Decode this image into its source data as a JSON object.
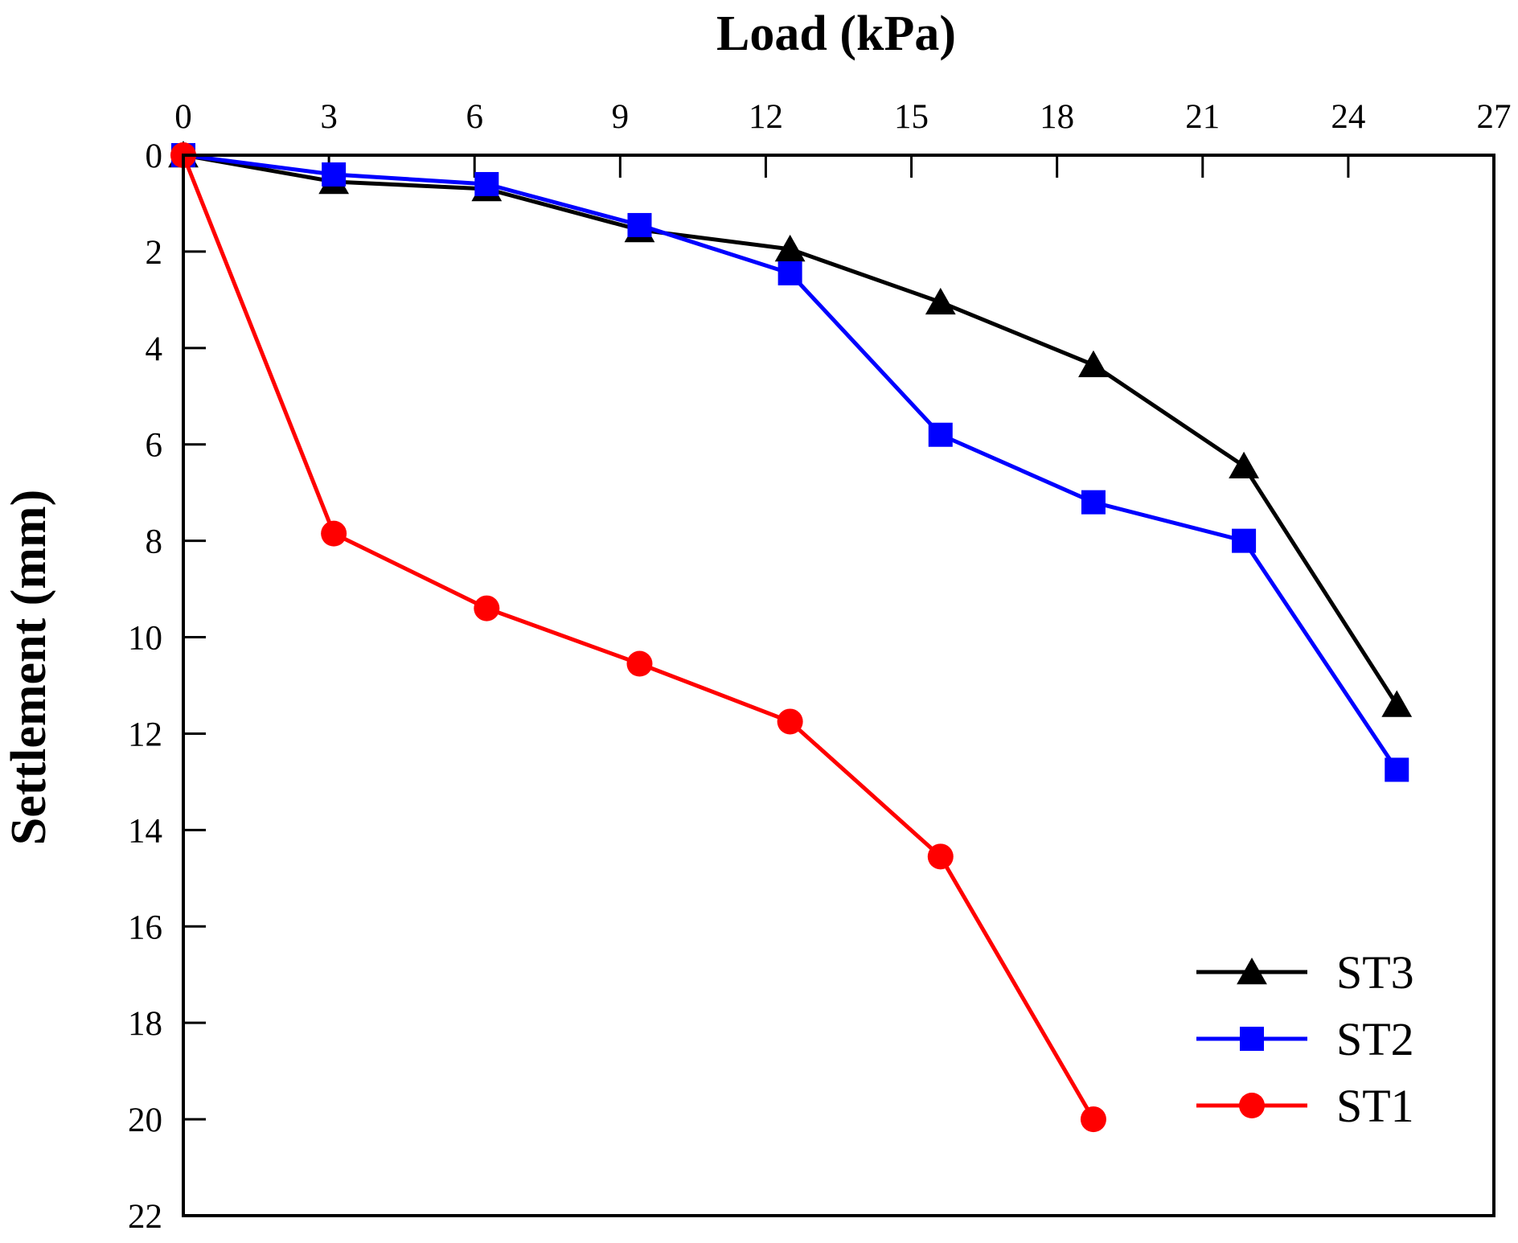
{
  "chart_data": {
    "type": "line",
    "title": "",
    "xlabel": "Load (kPa)",
    "ylabel": "Settlement (mm)",
    "xaxis_position": "top",
    "yaxis_inverted": true,
    "xlim": [
      0,
      27
    ],
    "ylim": [
      0,
      22
    ],
    "xticks": [
      "0",
      "3",
      "6",
      "9",
      "12",
      "15",
      "18",
      "21",
      "24",
      "27"
    ],
    "yticks": [
      "0",
      "2",
      "4",
      "6",
      "8",
      "10",
      "12",
      "14",
      "16",
      "18",
      "20",
      "22"
    ],
    "grid": false,
    "legend_position": "bottom-right",
    "series": [
      {
        "name": "ST3",
        "color": "#000000",
        "marker": "triangle",
        "x": [
          0,
          3.1,
          6.25,
          9.4,
          12.5,
          15.6,
          18.75,
          21.85,
          25.0
        ],
        "y": [
          0,
          0.55,
          0.7,
          1.55,
          1.95,
          3.05,
          4.35,
          6.45,
          11.4
        ]
      },
      {
        "name": "ST2",
        "color": "#0000ff",
        "marker": "square",
        "x": [
          0,
          3.1,
          6.25,
          9.4,
          12.5,
          15.6,
          18.75,
          21.85,
          25.0
        ],
        "y": [
          0,
          0.4,
          0.6,
          1.45,
          2.45,
          5.8,
          7.2,
          8.0,
          12.75
        ]
      },
      {
        "name": "ST1",
        "color": "#ff0000",
        "marker": "circle",
        "x": [
          0,
          3.1,
          6.25,
          9.4,
          12.5,
          15.6,
          18.75
        ],
        "y": [
          0,
          7.85,
          9.4,
          10.55,
          11.75,
          14.55,
          20.0
        ]
      }
    ]
  }
}
